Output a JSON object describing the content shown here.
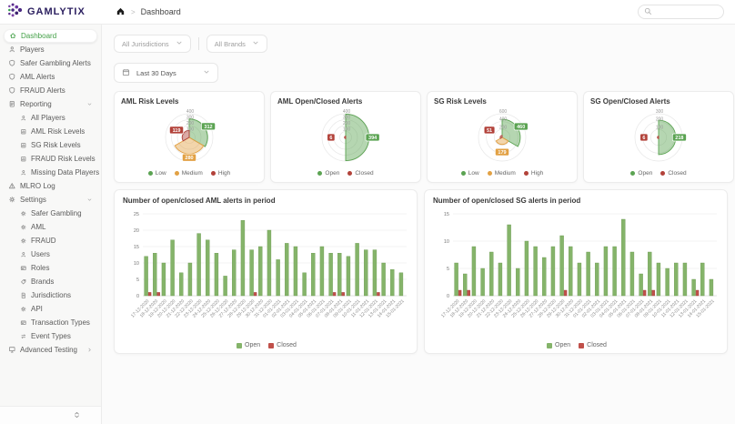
{
  "brand": {
    "name": "GAMLYTIX"
  },
  "header": {
    "breadcrumb": "Dashboard",
    "crumb_separator": ">"
  },
  "filters": {
    "jurisdictions": "All Jurisdictions",
    "brands": "All Brands",
    "date_range": "Last 30 Days"
  },
  "sidebar": {
    "items": [
      {
        "label": "Dashboard",
        "icon": "home",
        "active": true
      },
      {
        "label": "Players",
        "icon": "users"
      },
      {
        "label": "Safer Gambling Alerts",
        "icon": "shield"
      },
      {
        "label": "AML Alerts",
        "icon": "shield"
      },
      {
        "label": "FRAUD Alerts",
        "icon": "shield"
      },
      {
        "label": "Reporting",
        "icon": "report",
        "chevron": "down",
        "children": [
          {
            "label": "All Players",
            "icon": "users"
          },
          {
            "label": "AML Risk Levels",
            "icon": "chart"
          },
          {
            "label": "SG Risk Levels",
            "icon": "chart"
          },
          {
            "label": "FRAUD Risk Levels",
            "icon": "chart"
          },
          {
            "label": "Missing Data Players",
            "icon": "users"
          }
        ]
      },
      {
        "label": "MLRO Log",
        "icon": "warning"
      },
      {
        "label": "Settings",
        "icon": "gear",
        "chevron": "down",
        "children": [
          {
            "label": "Safer Gambling",
            "icon": "gear"
          },
          {
            "label": "AML",
            "icon": "gear"
          },
          {
            "label": "FRAUD",
            "icon": "gear"
          },
          {
            "label": "Users",
            "icon": "users"
          },
          {
            "label": "Roles",
            "icon": "card"
          },
          {
            "label": "Brands",
            "icon": "tag"
          },
          {
            "label": "Jurisdictions",
            "icon": "doc"
          },
          {
            "label": "API",
            "icon": "gear"
          },
          {
            "label": "Transaction Types",
            "icon": "card"
          },
          {
            "label": "Event Types",
            "icon": "swap"
          }
        ]
      },
      {
        "label": "Advanced Testing",
        "icon": "monitor",
        "chevron": "right"
      }
    ]
  },
  "chart_data": [
    {
      "id": "aml-risk",
      "type": "rose",
      "title": "AML Risk Levels",
      "categories": [
        "Low",
        "Medium",
        "High"
      ],
      "values": [
        312,
        280,
        119
      ],
      "colors": [
        "#5ba352",
        "#e2a144",
        "#b2423a"
      ],
      "max": 400,
      "ticks": [
        100,
        200,
        300,
        400
      ]
    },
    {
      "id": "aml-open-closed",
      "type": "rose",
      "title": "AML Open/Closed Alerts",
      "categories": [
        "Open",
        "Closed"
      ],
      "values": [
        394,
        6
      ],
      "colors": [
        "#5ba352",
        "#b2423a"
      ],
      "max": 400,
      "ticks": [
        100,
        200,
        300,
        400
      ]
    },
    {
      "id": "sg-risk",
      "type": "rose",
      "title": "SG Risk Levels",
      "categories": [
        "Low",
        "Medium",
        "High"
      ],
      "values": [
        460,
        179,
        51
      ],
      "colors": [
        "#5ba352",
        "#e2a144",
        "#b2423a"
      ],
      "max": 600,
      "ticks": [
        200,
        400,
        600
      ]
    },
    {
      "id": "sg-open-closed",
      "type": "rose",
      "title": "SG Open/Closed Alerts",
      "categories": [
        "Open",
        "Closed"
      ],
      "values": [
        218,
        6
      ],
      "colors": [
        "#5ba352",
        "#b2423a"
      ],
      "max": 300,
      "ticks": [
        100,
        200,
        300
      ]
    },
    {
      "id": "aml-bars",
      "type": "bar",
      "title": "Number of open/closed AML alerts in period",
      "categories": [
        "17-12-2020",
        "18-12-2020",
        "19-12-2020",
        "20-12-2020",
        "21-12-2020",
        "22-12-2020",
        "23-12-2020",
        "24-12-2020",
        "25-12-2020",
        "26-12-2020",
        "27-12-2020",
        "28-12-2020",
        "29-12-2020",
        "30-12-2020",
        "31-12-2020",
        "01-01-2021",
        "02-01-2021",
        "03-01-2021",
        "04-01-2021",
        "05-01-2021",
        "06-01-2021",
        "07-01-2021",
        "08-01-2021",
        "09-01-2021",
        "10-01-2021",
        "11-01-2021",
        "12-01-2021",
        "13-01-2021",
        "14-01-2021",
        "15-01-2021"
      ],
      "series": [
        {
          "name": "Open",
          "color": "#85b46a",
          "values": [
            12,
            13,
            10,
            17,
            7,
            10,
            19,
            17,
            13,
            6,
            14,
            23,
            14,
            15,
            20,
            11,
            16,
            15,
            7,
            13,
            15,
            13,
            13,
            12,
            16,
            14,
            14,
            10,
            8,
            7
          ]
        },
        {
          "name": "Closed",
          "color": "#c0504a",
          "values": [
            1,
            1,
            0,
            0,
            0,
            0,
            0,
            0,
            0,
            0,
            0,
            0,
            1,
            0,
            0,
            0,
            0,
            0,
            0,
            0,
            0,
            1,
            1,
            0,
            0,
            0,
            1,
            0,
            0,
            0
          ]
        }
      ],
      "ylim": [
        0,
        25
      ],
      "yticks": [
        0,
        5,
        10,
        15,
        20,
        25
      ]
    },
    {
      "id": "sg-bars",
      "type": "bar",
      "title": "Number of open/closed SG alerts in period",
      "categories": [
        "17-12-2020",
        "18-12-2020",
        "19-12-2020",
        "20-12-2020",
        "21-12-2020",
        "22-12-2020",
        "23-12-2020",
        "24-12-2020",
        "25-12-2020",
        "26-12-2020",
        "27-12-2020",
        "28-12-2020",
        "29-12-2020",
        "30-12-2020",
        "31-12-2020",
        "01-01-2021",
        "02-01-2021",
        "03-01-2021",
        "04-01-2021",
        "05-01-2021",
        "06-01-2021",
        "07-01-2021",
        "08-01-2021",
        "09-01-2021",
        "10-01-2021",
        "11-01-2021",
        "12-01-2021",
        "13-01-2021",
        "14-01-2021",
        "15-01-2021"
      ],
      "series": [
        {
          "name": "Open",
          "color": "#85b46a",
          "values": [
            6,
            4,
            9,
            5,
            8,
            6,
            13,
            5,
            10,
            9,
            7,
            9,
            11,
            9,
            6,
            8,
            6,
            9,
            9,
            14,
            8,
            4,
            8,
            6,
            5,
            6,
            6,
            3,
            6,
            3
          ]
        },
        {
          "name": "Closed",
          "color": "#c0504a",
          "values": [
            1,
            1,
            0,
            0,
            0,
            0,
            0,
            0,
            0,
            0,
            0,
            0,
            1,
            0,
            0,
            0,
            0,
            0,
            0,
            0,
            0,
            1,
            1,
            0,
            0,
            0,
            0,
            1,
            0,
            0
          ]
        }
      ],
      "ylim": [
        0,
        15
      ],
      "yticks": [
        0,
        5,
        10,
        15
      ]
    }
  ]
}
